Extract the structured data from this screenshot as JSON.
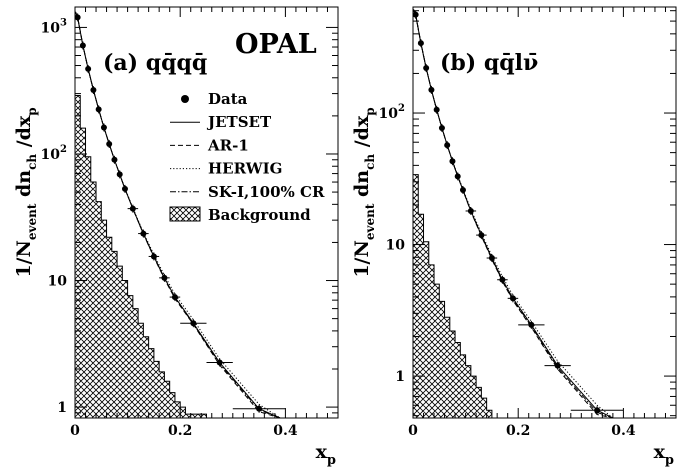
{
  "figure": {
    "experiment_label": "OPAL",
    "legend": [
      {
        "label": "Data",
        "kind": "marker"
      },
      {
        "label": "JETSET",
        "kind": "solid"
      },
      {
        "label": "AR-1",
        "kind": "dashed"
      },
      {
        "label": "HERWIG",
        "kind": "dotted"
      },
      {
        "label": "SK-I,100% CR",
        "kind": "dashdot"
      },
      {
        "label": "Background",
        "kind": "hatch"
      }
    ]
  },
  "chart_data": [
    {
      "type": "line",
      "panel_label": "(a) qq̄qq̄",
      "ylabel": "1/N_event dn_ch /dx_p",
      "xlabel": "x_p",
      "xlim": [
        0,
        0.5
      ],
      "ylim": [
        0.82,
        1450
      ],
      "yscale": "log",
      "x_ticks": [
        "0",
        "0.2",
        "0.4"
      ],
      "y_ticks": [
        {
          "value": 1000,
          "label": "10",
          "sup": "3"
        },
        {
          "value": 100,
          "label": "10",
          "sup": "2"
        },
        {
          "value": 10,
          "label": "10",
          "sup": ""
        },
        {
          "value": 1,
          "label": "1",
          "sup": ""
        }
      ],
      "data": [
        {
          "x": 0.005,
          "y": 1200,
          "xerr": 0.005
        },
        {
          "x": 0.015,
          "y": 720,
          "xerr": 0.005
        },
        {
          "x": 0.025,
          "y": 470,
          "xerr": 0.005
        },
        {
          "x": 0.035,
          "y": 320,
          "xerr": 0.005
        },
        {
          "x": 0.045,
          "y": 225,
          "xerr": 0.005
        },
        {
          "x": 0.055,
          "y": 162,
          "xerr": 0.005
        },
        {
          "x": 0.065,
          "y": 120,
          "xerr": 0.005
        },
        {
          "x": 0.075,
          "y": 90,
          "xerr": 0.005
        },
        {
          "x": 0.085,
          "y": 69,
          "xerr": 0.005
        },
        {
          "x": 0.095,
          "y": 53,
          "xerr": 0.005
        },
        {
          "x": 0.11,
          "y": 37,
          "xerr": 0.01
        },
        {
          "x": 0.13,
          "y": 23.5,
          "xerr": 0.01
        },
        {
          "x": 0.15,
          "y": 15.5,
          "xerr": 0.01
        },
        {
          "x": 0.17,
          "y": 10.5,
          "xerr": 0.01
        },
        {
          "x": 0.19,
          "y": 7.4,
          "xerr": 0.01
        },
        {
          "x": 0.225,
          "y": 4.6,
          "xerr": 0.025
        },
        {
          "x": 0.275,
          "y": 2.25,
          "xerr": 0.025
        },
        {
          "x": 0.35,
          "y": 0.97,
          "xerr": 0.05
        }
      ],
      "models": [
        {
          "name": "JETSET",
          "style": "solid",
          "x": [
            0.001,
            0.005,
            0.015,
            0.025,
            0.035,
            0.045,
            0.055,
            0.065,
            0.075,
            0.085,
            0.095,
            0.11,
            0.13,
            0.15,
            0.17,
            0.19,
            0.225,
            0.275,
            0.35,
            0.39
          ],
          "y": [
            1320,
            1200,
            720,
            470,
            320,
            225,
            162,
            120,
            90,
            69,
            53,
            37,
            23.5,
            15.5,
            10.5,
            7.4,
            4.6,
            2.25,
            0.97,
            0.64
          ]
        },
        {
          "name": "AR-1",
          "style": "dashed",
          "x": [
            0.001,
            0.005,
            0.015,
            0.025,
            0.035,
            0.045,
            0.055,
            0.065,
            0.075,
            0.085,
            0.095,
            0.11,
            0.13,
            0.15,
            0.17,
            0.19,
            0.225,
            0.275,
            0.35,
            0.39
          ],
          "y": [
            1330,
            1210,
            725,
            472,
            321,
            226,
            162,
            120,
            90,
            69,
            53,
            37,
            23.3,
            15.3,
            10.3,
            7.2,
            4.5,
            2.15,
            0.92,
            0.6
          ]
        },
        {
          "name": "HERWIG",
          "style": "dotted",
          "x": [
            0.001,
            0.005,
            0.015,
            0.025,
            0.035,
            0.045,
            0.055,
            0.065,
            0.075,
            0.085,
            0.095,
            0.11,
            0.13,
            0.15,
            0.17,
            0.19,
            0.225,
            0.275,
            0.35,
            0.39
          ],
          "y": [
            1300,
            1190,
            715,
            468,
            319,
            225,
            162,
            120,
            90,
            69,
            53.5,
            37.5,
            24,
            16,
            11,
            7.8,
            4.9,
            2.4,
            1.05,
            0.7
          ]
        },
        {
          "name": "SK-I,100% CR",
          "style": "dashdot",
          "x": [
            0.001,
            0.005,
            0.015,
            0.025,
            0.035,
            0.045,
            0.055,
            0.065,
            0.075,
            0.085,
            0.095,
            0.11,
            0.13,
            0.15,
            0.17,
            0.19,
            0.225,
            0.275,
            0.35,
            0.39
          ],
          "y": [
            1310,
            1195,
            718,
            469,
            320,
            225,
            162,
            120,
            90,
            69,
            53,
            37,
            23.4,
            15.4,
            10.4,
            7.3,
            4.55,
            2.2,
            0.95,
            0.62
          ]
        }
      ],
      "background": {
        "bin_width": 0.01,
        "x_start": 0,
        "values": [
          290,
          160,
          95,
          60,
          42,
          30,
          22,
          17,
          13,
          10,
          7.6,
          6,
          4.6,
          3.6,
          2.9,
          2.3,
          1.9,
          1.6,
          1.3,
          1.1,
          1.0,
          0.88,
          0.88,
          0.88,
          0.88
        ]
      }
    },
    {
      "type": "line",
      "panel_label": "(b) qq̄lν̄",
      "ylabel": "1/N_event dn_ch /dx_p",
      "xlabel": "x_p",
      "xlim": [
        0,
        0.5
      ],
      "ylim": [
        0.48,
        640
      ],
      "yscale": "log",
      "x_ticks": [
        "0",
        "0.2",
        "0.4"
      ],
      "y_ticks": [
        {
          "value": 100,
          "label": "10",
          "sup": "2"
        },
        {
          "value": 10,
          "label": "10",
          "sup": ""
        },
        {
          "value": 1,
          "label": "1",
          "sup": ""
        }
      ],
      "data": [
        {
          "x": 0.005,
          "y": 560,
          "xerr": 0.005
        },
        {
          "x": 0.015,
          "y": 340,
          "xerr": 0.005
        },
        {
          "x": 0.025,
          "y": 220,
          "xerr": 0.005
        },
        {
          "x": 0.035,
          "y": 150,
          "xerr": 0.005
        },
        {
          "x": 0.045,
          "y": 106,
          "xerr": 0.005
        },
        {
          "x": 0.055,
          "y": 77,
          "xerr": 0.005
        },
        {
          "x": 0.065,
          "y": 57,
          "xerr": 0.005
        },
        {
          "x": 0.075,
          "y": 43,
          "xerr": 0.005
        },
        {
          "x": 0.085,
          "y": 33,
          "xerr": 0.005
        },
        {
          "x": 0.095,
          "y": 26,
          "xerr": 0.005
        },
        {
          "x": 0.11,
          "y": 18,
          "xerr": 0.01
        },
        {
          "x": 0.13,
          "y": 11.8,
          "xerr": 0.01
        },
        {
          "x": 0.15,
          "y": 7.9,
          "xerr": 0.01
        },
        {
          "x": 0.17,
          "y": 5.4,
          "xerr": 0.01
        },
        {
          "x": 0.19,
          "y": 3.9,
          "xerr": 0.01
        },
        {
          "x": 0.225,
          "y": 2.45,
          "xerr": 0.025
        },
        {
          "x": 0.275,
          "y": 1.2,
          "xerr": 0.025
        },
        {
          "x": 0.35,
          "y": 0.55,
          "xerr": 0.05
        }
      ],
      "models": [
        {
          "name": "JETSET",
          "style": "solid",
          "x": [
            0.001,
            0.005,
            0.015,
            0.025,
            0.035,
            0.045,
            0.055,
            0.065,
            0.075,
            0.085,
            0.095,
            0.11,
            0.13,
            0.15,
            0.17,
            0.19,
            0.225,
            0.275,
            0.35,
            0.38
          ],
          "y": [
            610,
            560,
            340,
            220,
            150,
            106,
            77,
            57,
            43,
            33,
            26,
            18,
            11.8,
            7.9,
            5.4,
            3.9,
            2.45,
            1.2,
            0.55,
            0.43
          ]
        },
        {
          "name": "AR-1",
          "style": "dashed",
          "x": [
            0.001,
            0.005,
            0.015,
            0.025,
            0.035,
            0.045,
            0.055,
            0.065,
            0.075,
            0.085,
            0.095,
            0.11,
            0.13,
            0.15,
            0.17,
            0.19,
            0.225,
            0.275,
            0.35,
            0.38
          ],
          "y": [
            615,
            565,
            342,
            221,
            150,
            106,
            77,
            57,
            43,
            33,
            25.8,
            17.8,
            11.6,
            7.7,
            5.25,
            3.75,
            2.35,
            1.13,
            0.51,
            0.4
          ]
        },
        {
          "name": "HERWIG",
          "style": "dotted",
          "x": [
            0.001,
            0.005,
            0.015,
            0.025,
            0.035,
            0.045,
            0.055,
            0.065,
            0.075,
            0.085,
            0.095,
            0.11,
            0.13,
            0.15,
            0.17,
            0.19,
            0.225,
            0.275,
            0.35,
            0.38
          ],
          "y": [
            600,
            555,
            338,
            219,
            150,
            106,
            77,
            57,
            43.5,
            33.5,
            26.3,
            18.5,
            12.2,
            8.2,
            5.7,
            4.1,
            2.6,
            1.3,
            0.6,
            0.47
          ]
        },
        {
          "name": "SK-I,100% CR",
          "style": "dashdot",
          "x": [
            0.001,
            0.005,
            0.015,
            0.025,
            0.035,
            0.045,
            0.055,
            0.065,
            0.075,
            0.085,
            0.095,
            0.11,
            0.13,
            0.15,
            0.17,
            0.19,
            0.225,
            0.275,
            0.35,
            0.38
          ],
          "y": [
            605,
            558,
            339,
            220,
            150,
            106,
            77,
            57,
            43,
            33,
            26,
            17.9,
            11.7,
            7.8,
            5.3,
            3.8,
            2.4,
            1.16,
            0.53,
            0.41
          ]
        }
      ],
      "background": {
        "bin_width": 0.01,
        "x_start": 0,
        "values": [
          34,
          17,
          10.5,
          7,
          5,
          3.7,
          2.8,
          2.2,
          1.8,
          1.45,
          1.2,
          1.0,
          0.82,
          0.68,
          0.55
        ]
      }
    }
  ]
}
